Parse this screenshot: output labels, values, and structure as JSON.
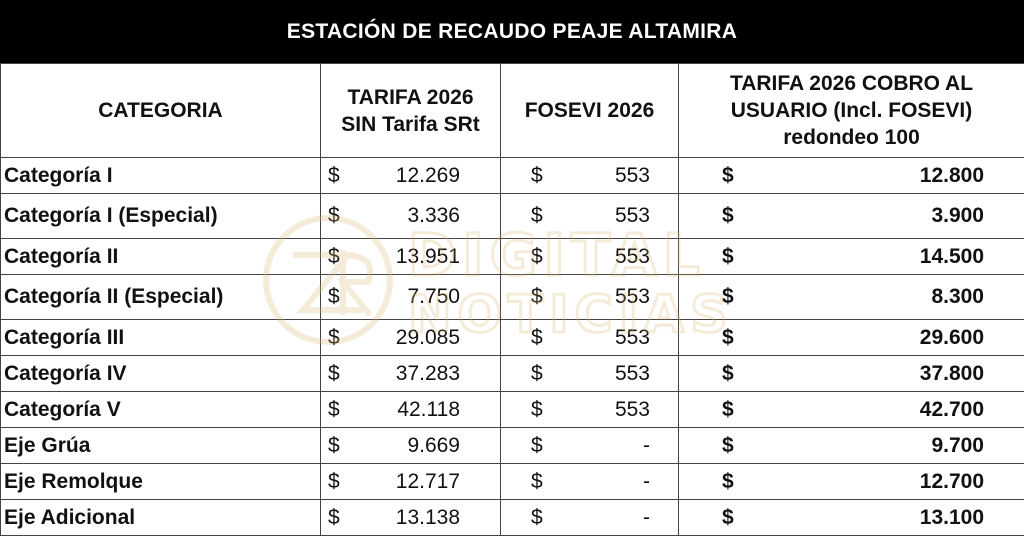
{
  "title": "ESTACIÓN DE RECAUDO PEAJE ALTAMIRA",
  "headers": [
    "CATEGORIA",
    "TARIFA 2026\nSIN Tarifa SRt",
    "FOSEVI 2026",
    "TARIFA 2026 COBRO AL\nUSUARIO  (Incl. FOSEVI)\nredondeo 100"
  ],
  "currency_symbol": "$",
  "rows": [
    {
      "categoria": "Categoría I",
      "tarifa": "12.269",
      "fosevi": "553",
      "cobro": "12.800"
    },
    {
      "categoria": "Categoría I (Especial)",
      "tarifa": "3.336",
      "fosevi": "553",
      "cobro": "3.900"
    },
    {
      "categoria": "Categoría II",
      "tarifa": "13.951",
      "fosevi": "553",
      "cobro": "14.500"
    },
    {
      "categoria": "Categoría II (Especial)",
      "tarifa": "7.750",
      "fosevi": "553",
      "cobro": "8.300"
    },
    {
      "categoria": "Categoría III",
      "tarifa": "29.085",
      "fosevi": "553",
      "cobro": "29.600"
    },
    {
      "categoria": "Categoría IV",
      "tarifa": "37.283",
      "fosevi": "553",
      "cobro": "37.800"
    },
    {
      "categoria": "Categoría V",
      "tarifa": "42.118",
      "fosevi": "553",
      "cobro": "42.700"
    },
    {
      "categoria": "Eje Grúa",
      "tarifa": "9.669",
      "fosevi": "-",
      "cobro": "9.700"
    },
    {
      "categoria": "Eje Remolque",
      "tarifa": "12.717",
      "fosevi": "-",
      "cobro": "12.700"
    },
    {
      "categoria": "Eje Adicional",
      "tarifa": "13.138",
      "fosevi": "-",
      "cobro": "13.100"
    }
  ],
  "watermark": {
    "line1": "DIGITAL",
    "line2": "NOTICIAS",
    "color": "#d9b36a"
  }
}
